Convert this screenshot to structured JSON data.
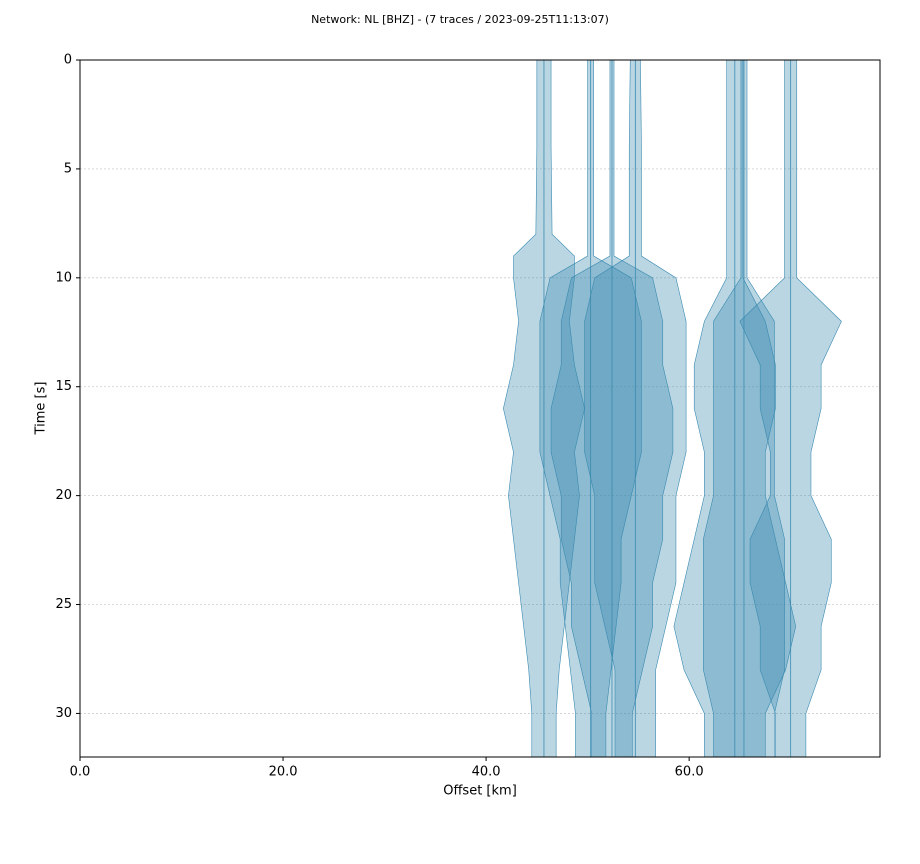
{
  "chart_data": {
    "type": "section",
    "title": "Network: NL [BHZ] - (7 traces / 2023-09-25T11:13:07)",
    "x_label": "Offset [km]",
    "y_label": "Time [s]",
    "xlim": [
      0,
      78.8
    ],
    "ylim": [
      0,
      32
    ],
    "y_inverted": true,
    "xticks": [
      {
        "value": 0,
        "label": "0.0"
      },
      {
        "value": 20,
        "label": "20.0"
      },
      {
        "value": 40,
        "label": "40.0"
      },
      {
        "value": 60,
        "label": "60.0"
      }
    ],
    "yticks": [
      0,
      5,
      10,
      15,
      20,
      25,
      30
    ],
    "grid": true,
    "color": "#3a8ab0",
    "times": [
      0,
      4,
      8,
      9,
      10,
      12,
      14,
      16,
      18,
      20,
      22,
      24,
      26,
      28,
      30,
      32
    ],
    "traces": [
      {
        "offset": 45.7,
        "amplitude": [
          0.7,
          0.7,
          0.8,
          3,
          3,
          2.5,
          3,
          4,
          3,
          3.5,
          3,
          2.5,
          2,
          1.5,
          1.2,
          1.2
        ]
      },
      {
        "offset": 50.3,
        "amplitude": [
          0.3,
          0.3,
          0.3,
          0.3,
          4,
          5,
          5,
          5,
          5,
          4,
          3,
          3,
          2.5,
          2,
          1.5,
          1.5
        ]
      },
      {
        "offset": 52.4,
        "amplitude": [
          0.2,
          0.2,
          0.2,
          0.2,
          4,
          5,
          5,
          6,
          6,
          5,
          5,
          4,
          4,
          3,
          2,
          2
        ]
      },
      {
        "offset": 54.7,
        "amplitude": [
          0.5,
          0.6,
          0.6,
          0.6,
          4,
          5,
          5,
          5,
          5,
          4,
          4,
          4,
          3,
          2,
          2,
          2
        ]
      },
      {
        "offset": 64.5,
        "amplitude": [
          0.8,
          0.8,
          0.8,
          0.8,
          0.8,
          3,
          4,
          4,
          3,
          3,
          4,
          5,
          6,
          5,
          3,
          3
        ]
      },
      {
        "offset": 65.4,
        "amplitude": [
          0.3,
          0.3,
          0.3,
          0.3,
          0.3,
          3,
          3,
          3,
          3,
          3,
          4,
          4,
          4,
          4,
          3,
          3
        ]
      },
      {
        "offset": 70.0,
        "amplitude": [
          0.6,
          0.6,
          0.6,
          0.6,
          0.6,
          5,
          3,
          3,
          2,
          2,
          4,
          4,
          3,
          3,
          1.5,
          1.5
        ]
      }
    ]
  }
}
